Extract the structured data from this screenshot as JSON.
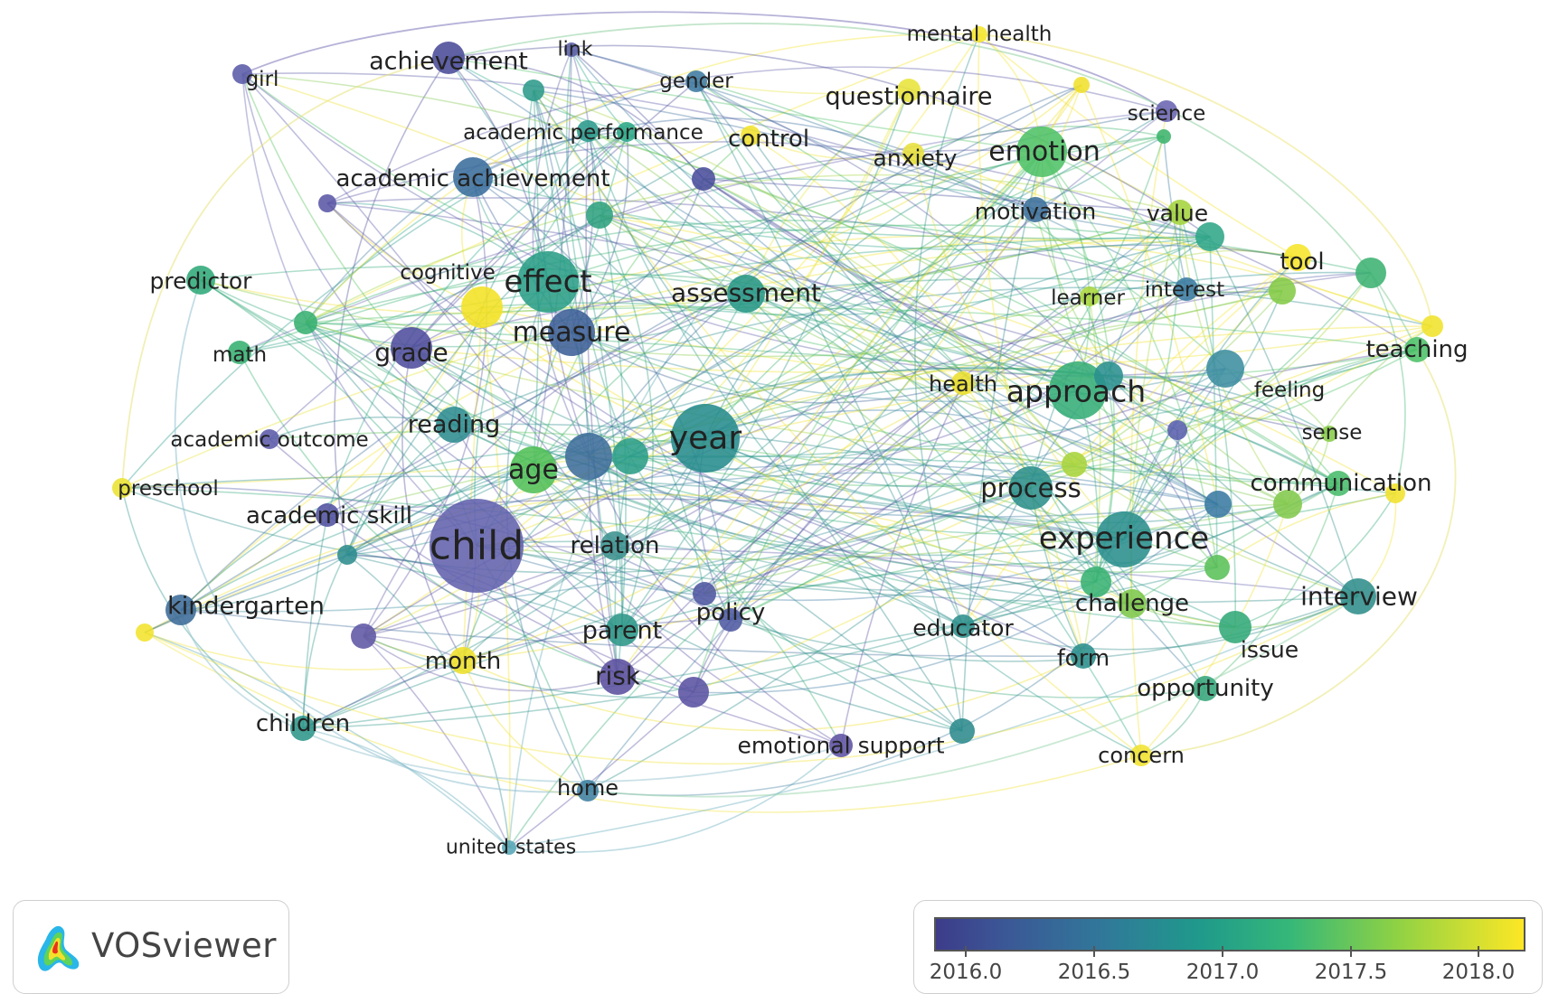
{
  "app": {
    "brand": "VOSviewer",
    "logo_icon": "vosviewer-density-icon"
  },
  "legend": {
    "ticks": [
      "2016.0",
      "2016.5",
      "2017.0",
      "2017.5",
      "2018.0"
    ],
    "colors": [
      "#3d3c8a",
      "#31779a",
      "#1f9a8b",
      "#35b779",
      "#8dd145",
      "#fde725"
    ]
  },
  "nodes": [
    {
      "label": "mental health",
      "color": "#f5e52a"
    },
    {
      "label": "link",
      "color": "#5a5fa5"
    },
    {
      "label": "achievement",
      "color": "#4a4a98"
    },
    {
      "label": "girl",
      "color": "#5a5aa8"
    },
    {
      "label": "gender",
      "color": "#3f7aa0"
    },
    {
      "label": "questionnaire",
      "color": "#e8e43a"
    },
    {
      "label": "science",
      "color": "#6a64b0"
    },
    {
      "label": "academic performance",
      "color": "#2a9a8c"
    },
    {
      "label": "control",
      "color": "#f2e32c"
    },
    {
      "label": "anxiety",
      "color": "#e8e03a"
    },
    {
      "label": "emotion",
      "color": "#4ec266"
    },
    {
      "label": "academic achievement",
      "color": "#3a6d9c"
    },
    {
      "label": "motivation",
      "color": "#3c6f9c"
    },
    {
      "label": "value",
      "color": "#a4d43e"
    },
    {
      "label": "predictor",
      "color": "#2fa878"
    },
    {
      "label": "cognitive",
      "color": "#f3e124"
    },
    {
      "label": "effect",
      "color": "#2a9d86"
    },
    {
      "label": "assessment",
      "color": "#279685"
    },
    {
      "label": "tool",
      "color": "#f6e52a"
    },
    {
      "label": "learner",
      "color": "#a8d63c"
    },
    {
      "label": "interest",
      "color": "#3a7aa0"
    },
    {
      "label": "math",
      "color": "#35b070"
    },
    {
      "label": "grade",
      "color": "#4e4c9c"
    },
    {
      "label": "measure",
      "color": "#3c5e96"
    },
    {
      "label": "teaching",
      "color": "#4cc068"
    },
    {
      "label": "health",
      "color": "#ecdf2c"
    },
    {
      "label": "approach",
      "color": "#35ad77"
    },
    {
      "label": "feeling",
      "color": "#3c8da0"
    },
    {
      "label": "reading",
      "color": "#2d8c8e"
    },
    {
      "label": "academic outcome",
      "color": "#5b5aa8"
    },
    {
      "label": "year",
      "color": "#268b8c"
    },
    {
      "label": "sense",
      "color": "#86cc48"
    },
    {
      "label": "age",
      "color": "#51bf56"
    },
    {
      "label": "preschool",
      "color": "#e9e232"
    },
    {
      "label": "process",
      "color": "#2c8f8b"
    },
    {
      "label": "communication",
      "color": "#48bb6a"
    },
    {
      "label": "academic skill",
      "color": "#5151a0"
    },
    {
      "label": "child",
      "color": "#6261ad"
    },
    {
      "label": "relation",
      "color": "#3c9290"
    },
    {
      "label": "experience",
      "color": "#2a8e8c"
    },
    {
      "label": "kindergarten",
      "color": "#3c6b98"
    },
    {
      "label": "policy",
      "color": "#4f5aa2"
    },
    {
      "label": "challenge",
      "color": "#7dc74a"
    },
    {
      "label": "interview",
      "color": "#2f8d8a"
    },
    {
      "label": "parent",
      "color": "#2b9688"
    },
    {
      "label": "educator",
      "color": "#2d908c"
    },
    {
      "label": "issue",
      "color": "#32a878"
    },
    {
      "label": "month",
      "color": "#eee02a"
    },
    {
      "label": "form",
      "color": "#2a8e8c"
    },
    {
      "label": "risk",
      "color": "#5a4f9e"
    },
    {
      "label": "opportunity",
      "color": "#36a57a"
    },
    {
      "label": "children",
      "color": "#2d968a"
    },
    {
      "label": "emotional support",
      "color": "#5d52a2"
    },
    {
      "label": "concern",
      "color": "#f1e330"
    },
    {
      "label": "home",
      "color": "#3e7fa0"
    },
    {
      "label": "united states",
      "color": "#56a6b6"
    }
  ]
}
